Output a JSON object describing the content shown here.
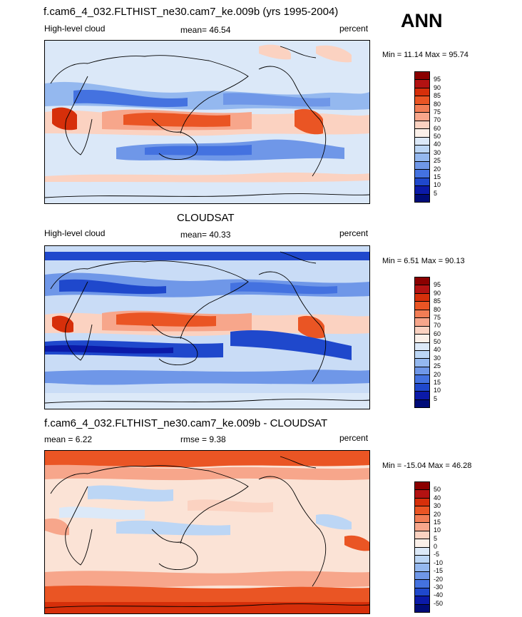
{
  "season_label": "ANN",
  "panels": [
    {
      "title": "f.cam6_4_032.FLTHIST_ne30.cam7_ke.009b (yrs 1995-2004)",
      "left_label": "High-level cloud",
      "center_label": "mean=  46.54",
      "right_label": "percent",
      "minmax": "Min =  11.14 Max =  95.74",
      "levels": [
        "95",
        "90",
        "85",
        "80",
        "75",
        "70",
        "60",
        "50",
        "40",
        "30",
        "25",
        "20",
        "15",
        "10",
        "5"
      ],
      "colors": [
        "#8b0000",
        "#b31212",
        "#d62f0a",
        "#ea5524",
        "#f27d55",
        "#f7a68b",
        "#fbd2c1",
        "#fbf0e9",
        "#dce9f8",
        "#bcd6f5",
        "#94b8ef",
        "#6f97e8",
        "#4472e0",
        "#1f48cc",
        "#0b1aa8",
        "#000c78"
      ],
      "background": "#dbe8f8"
    },
    {
      "title": "CLOUDSAT",
      "left_label": "High-level cloud",
      "center_label": "mean=  40.33",
      "right_label": "percent",
      "minmax": "Min =  6.51 Max =  90.13",
      "levels": [
        "95",
        "90",
        "85",
        "80",
        "75",
        "70",
        "60",
        "50",
        "40",
        "30",
        "25",
        "20",
        "15",
        "10",
        "5"
      ],
      "colors": [
        "#8b0000",
        "#b31212",
        "#d62f0a",
        "#ea5524",
        "#f27d55",
        "#f7a68b",
        "#fbd2c1",
        "#fbf0e9",
        "#dce9f8",
        "#bcd6f5",
        "#94b8ef",
        "#6f97e8",
        "#4472e0",
        "#1f48cc",
        "#0b1aa8",
        "#000c78"
      ],
      "background": "#c9dcf6"
    },
    {
      "title": "f.cam6_4_032.FLTHIST_ne30.cam7_ke.009b - CLOUDSAT",
      "left_label": "mean =   6.22",
      "center_label": "rmse =   9.38",
      "right_label": "percent",
      "minmax": "Min = -15.04 Max =  46.28",
      "levels": [
        "50",
        "40",
        "30",
        "20",
        "15",
        "10",
        "5",
        "0",
        "-5",
        "-10",
        "-15",
        "-20",
        "-30",
        "-40",
        "-50"
      ],
      "colors": [
        "#8b0000",
        "#b31212",
        "#d62f0a",
        "#ea5524",
        "#f27d55",
        "#f7a68b",
        "#fbd2c1",
        "#fbf0e9",
        "#dce9f8",
        "#bcd6f5",
        "#94b8ef",
        "#6f97e8",
        "#4472e0",
        "#1f48cc",
        "#0b1aa8",
        "#000c78"
      ],
      "background": "#fbe3d6"
    }
  ]
}
